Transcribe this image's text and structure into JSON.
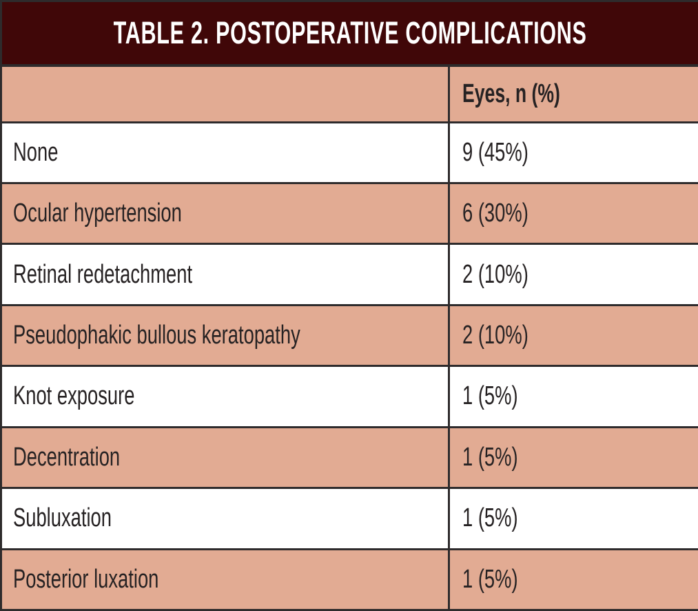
{
  "title": "TABLE 2. POSTOPERATIVE COMPLICATIONS",
  "table": {
    "header": {
      "col1": "",
      "col2": "Eyes, n (%)"
    },
    "rows": [
      {
        "label": "None",
        "value": "9 (45%)"
      },
      {
        "label": "Ocular hypertension",
        "value": "6 (30%)"
      },
      {
        "label": "Retinal redetachment",
        "value": "2 (10%)"
      },
      {
        "label": "Pseudophakic bullous keratopathy",
        "value": "2 (10%)"
      },
      {
        "label": "Knot exposure",
        "value": "1 (5%)"
      },
      {
        "label": "Decentration",
        "value": "1 (5%)"
      },
      {
        "label": "Subluxation",
        "value": "1 (5%)"
      },
      {
        "label": "Posterior luxation",
        "value": "1 (5%)"
      }
    ]
  },
  "colors": {
    "header_bg": "#400708",
    "row_alt_bg": "#e2ab93",
    "row_bg": "#ffffff",
    "border": "#2e2b2c",
    "text": "#262223",
    "title_text": "#ffffff"
  }
}
